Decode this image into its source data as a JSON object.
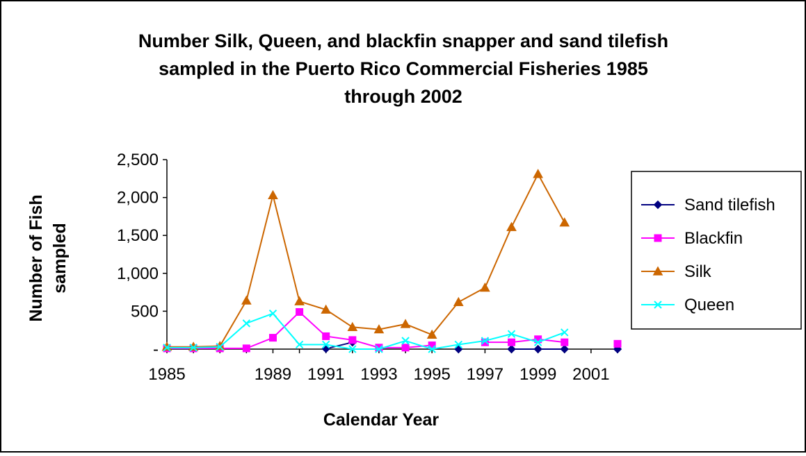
{
  "chart_data": {
    "type": "line",
    "title_lines": [
      "Number Silk, Queen, and blackfin snapper and sand tilefish",
      "sampled in the Puerto Rico Commercial Fisheries 1985",
      "through 2002"
    ],
    "xlabel": "Calendar Year",
    "ylabel_lines": [
      "Number of Fish",
      "sampled"
    ],
    "x": [
      1985,
      1986,
      1987,
      1988,
      1989,
      1990,
      1991,
      1992,
      1993,
      1994,
      1995,
      1996,
      1997,
      1998,
      1999,
      2000,
      2001,
      2002
    ],
    "x_tick_labels": [
      "1985",
      "1989",
      "1991",
      "1993",
      "1995",
      "1997",
      "1999",
      "2001"
    ],
    "x_tick_positions": [
      1985,
      1989,
      1991,
      1993,
      1995,
      1997,
      1999,
      2001
    ],
    "ylim": [
      0,
      2500
    ],
    "y_ticks": [
      0,
      500,
      1000,
      1500,
      2000,
      2500
    ],
    "y_tick_labels": [
      "-",
      "500",
      "1,000",
      "1,500",
      "2,000",
      "2,500"
    ],
    "grid": false,
    "legend_position": "right",
    "series": [
      {
        "name": "Sand tilefish",
        "color": "#000080",
        "marker": "diamond",
        "values": [
          null,
          null,
          null,
          null,
          null,
          null,
          5,
          90,
          null,
          null,
          null,
          0,
          null,
          0,
          0,
          0,
          null,
          0
        ]
      },
      {
        "name": "Blackfin",
        "color": "#FF00FF",
        "marker": "square",
        "values": [
          10,
          10,
          10,
          10,
          150,
          490,
          170,
          120,
          20,
          20,
          50,
          null,
          90,
          90,
          130,
          90,
          null,
          70
        ]
      },
      {
        "name": "Silk",
        "color": "#CC6600",
        "marker": "triangle",
        "values": [
          30,
          30,
          40,
          640,
          2030,
          630,
          520,
          290,
          260,
          330,
          190,
          620,
          810,
          1610,
          2310,
          1670,
          null,
          null
        ]
      },
      {
        "name": "Queen",
        "color": "#00FFFF",
        "marker": "x",
        "values": [
          20,
          20,
          30,
          340,
          470,
          60,
          60,
          0,
          0,
          110,
          0,
          60,
          110,
          200,
          90,
          220,
          null,
          null
        ]
      }
    ]
  }
}
